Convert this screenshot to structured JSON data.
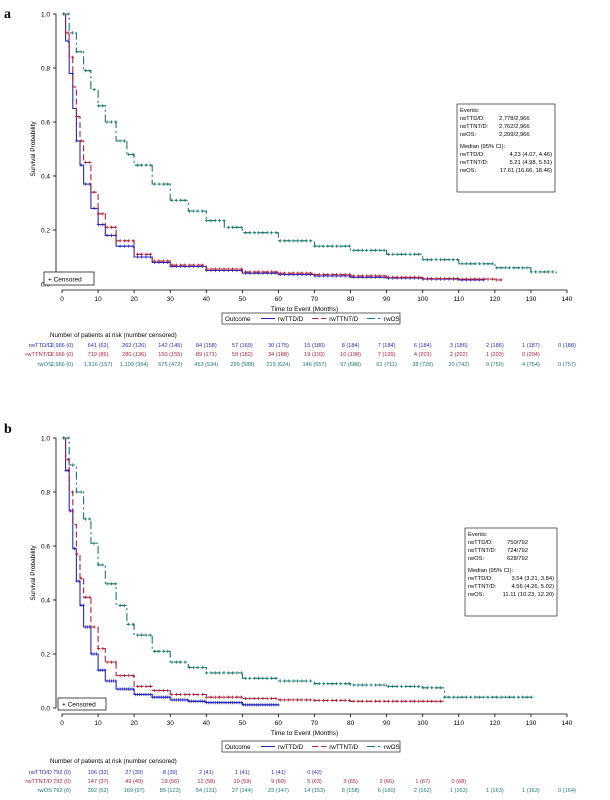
{
  "chart_data": [
    {
      "panel": "a",
      "type": "line",
      "xlabel": "Time to Event (Months)",
      "ylabel": "Survival Probability",
      "xlim": [
        0,
        140
      ],
      "ylim": [
        0,
        1.0
      ],
      "x_ticks": [
        0,
        10,
        20,
        30,
        40,
        50,
        60,
        70,
        80,
        90,
        100,
        110,
        120,
        130,
        140
      ],
      "y_ticks": [
        "0.0",
        "0.2",
        "0.4",
        "0.6",
        "0.8",
        "1.0"
      ],
      "censor_legend": "Censored",
      "legend_title": "Outcome",
      "stats": {
        "events_title": "Events:",
        "events": [
          {
            "label": "rwTTD/D:",
            "value": "2,778/2,966"
          },
          {
            "label": "rwTTNT/D:",
            "value": "2,762/2,966"
          },
          {
            "label": "rwOS:",
            "value": "2,209/2,966"
          }
        ],
        "median_title": "Median (95% CI):",
        "median": [
          {
            "label": "rwTTD/D:",
            "value": "4.23 (4.07, 4.46)"
          },
          {
            "label": "rwTTNT/D:",
            "value": "5.21 (4.98, 5.51)"
          },
          {
            "label": "rwOS:",
            "value": "17.61 (16.66, 18.46)"
          }
        ]
      },
      "series": [
        {
          "name": "rwTTD/D",
          "color": "#2929c4",
          "dash": "solid",
          "x": [
            0,
            1,
            2,
            3,
            4,
            5,
            6,
            8,
            10,
            12,
            15,
            20,
            25,
            30,
            40,
            50,
            60,
            70,
            80,
            90,
            100,
            110,
            117
          ],
          "y": [
            1.0,
            0.9,
            0.78,
            0.65,
            0.53,
            0.44,
            0.37,
            0.28,
            0.22,
            0.18,
            0.14,
            0.1,
            0.08,
            0.065,
            0.05,
            0.04,
            0.035,
            0.03,
            0.025,
            0.022,
            0.018,
            0.015,
            0.015
          ]
        },
        {
          "name": "rwTTNT/D",
          "color": "#b0203a",
          "dash": "dash",
          "x": [
            0,
            1,
            2,
            3,
            4,
            5,
            6,
            8,
            10,
            12,
            15,
            20,
            25,
            30,
            40,
            50,
            60,
            70,
            80,
            90,
            100,
            110,
            120,
            122
          ],
          "y": [
            1.0,
            0.93,
            0.84,
            0.73,
            0.62,
            0.53,
            0.45,
            0.34,
            0.26,
            0.21,
            0.16,
            0.11,
            0.085,
            0.07,
            0.055,
            0.045,
            0.04,
            0.035,
            0.03,
            0.025,
            0.02,
            0.018,
            0.015,
            0.015
          ]
        },
        {
          "name": "rwOS",
          "color": "#1b7a6e",
          "dash": "dashdot",
          "x": [
            0,
            2,
            4,
            6,
            8,
            10,
            12,
            15,
            18,
            20,
            25,
            30,
            35,
            40,
            45,
            50,
            60,
            70,
            80,
            90,
            100,
            110,
            120,
            130,
            137
          ],
          "y": [
            1.0,
            0.93,
            0.86,
            0.79,
            0.72,
            0.66,
            0.6,
            0.53,
            0.48,
            0.44,
            0.37,
            0.31,
            0.27,
            0.235,
            0.21,
            0.19,
            0.16,
            0.14,
            0.125,
            0.11,
            0.09,
            0.075,
            0.06,
            0.045,
            0.04
          ]
        }
      ],
      "risk_table": {
        "title": "Number of patients at risk (number censored)",
        "rows": [
          {
            "name": "rwTTD/D",
            "values": [
              "2,966 (0)",
              "641 (62)",
              "262 (126)",
              "142 (145)",
              "84 (158)",
              "57 (169)",
              "30 (175)",
              "15 (180)",
              "8 (184)",
              "7 (184)",
              "6 (184)",
              "3 (186)",
              "2 (186)",
              "1 (187)",
              "0 (188)"
            ]
          },
          {
            "name": "rwTTNT/D",
            "values": [
              "2,966 (0)",
              "719 (86)",
              "280 (136)",
              "150 (155)",
              "89 (171)",
              "59 (182)",
              "34 (188)",
              "19 (193)",
              "10 (198)",
              "7 (199)",
              "4 (201)",
              "2 (202)",
              "1 (203)",
              "0 (204)"
            ]
          },
          {
            "name": "rwOS",
            "values": [
              "2,966 (0)",
              "1,916 (157)",
              "1,109 (364)",
              "675 (472)",
              "453 (534)",
              "299 (588)",
              "219 (624)",
              "146 (657)",
              "97 (688)",
              "61 (711)",
              "38 (728)",
              "20 (742)",
              "9 (750)",
              "4 (754)",
              "0 (757)"
            ]
          }
        ]
      }
    },
    {
      "panel": "b",
      "type": "line",
      "xlabel": "Time to Event (Months)",
      "ylabel": "Survival Probability",
      "xlim": [
        0,
        140
      ],
      "ylim": [
        0,
        1.0
      ],
      "x_ticks": [
        0,
        10,
        20,
        30,
        40,
        50,
        60,
        70,
        80,
        90,
        100,
        110,
        120,
        130,
        140
      ],
      "y_ticks": [
        "0.0",
        "0.2",
        "0.4",
        "0.6",
        "0.8",
        "1.0"
      ],
      "censor_legend": "Censored",
      "legend_title": "Outcome",
      "stats": {
        "events_title": "Events:",
        "events": [
          {
            "label": "rwTTD/D:",
            "value": "750/792"
          },
          {
            "label": "rwTTNT/D:",
            "value": "724/792"
          },
          {
            "label": "rwOS:",
            "value": "628/792"
          }
        ],
        "median_title": "Median (95% CI):",
        "median": [
          {
            "label": "rwTTD/D:",
            "value": "3.54 (3.21, 3.84)"
          },
          {
            "label": "rwTTNT/D:",
            "value": "4.56 (4.26, 5.02)"
          },
          {
            "label": "rwOS:",
            "value": "11.11 (10.23, 12.20)"
          }
        ]
      },
      "series": [
        {
          "name": "rwTTD/D",
          "color": "#2929c4",
          "dash": "solid",
          "x": [
            0,
            1,
            2,
            3,
            4,
            5,
            6,
            8,
            10,
            12,
            15,
            20,
            25,
            30,
            35,
            40,
            50,
            60
          ],
          "y": [
            1.0,
            0.88,
            0.73,
            0.59,
            0.47,
            0.38,
            0.3,
            0.2,
            0.14,
            0.1,
            0.07,
            0.05,
            0.04,
            0.03,
            0.025,
            0.02,
            0.012,
            0.01
          ]
        },
        {
          "name": "rwTTNT/D",
          "color": "#b0203a",
          "dash": "dash",
          "x": [
            0,
            1,
            2,
            3,
            4,
            5,
            6,
            8,
            10,
            12,
            15,
            20,
            25,
            30,
            40,
            50,
            60,
            70,
            80,
            90,
            100,
            106
          ],
          "y": [
            1.0,
            0.92,
            0.8,
            0.68,
            0.57,
            0.48,
            0.41,
            0.3,
            0.22,
            0.17,
            0.12,
            0.08,
            0.065,
            0.05,
            0.04,
            0.035,
            0.03,
            0.028,
            0.025,
            0.025,
            0.025,
            0.025
          ]
        },
        {
          "name": "rwOS",
          "color": "#1b7a6e",
          "dash": "dashdot",
          "x": [
            0,
            2,
            4,
            6,
            8,
            10,
            12,
            15,
            18,
            20,
            25,
            30,
            35,
            40,
            50,
            60,
            70,
            80,
            90,
            100,
            106,
            110,
            120,
            131
          ],
          "y": [
            1.0,
            0.9,
            0.8,
            0.7,
            0.61,
            0.53,
            0.46,
            0.38,
            0.31,
            0.27,
            0.21,
            0.17,
            0.15,
            0.13,
            0.11,
            0.1,
            0.09,
            0.085,
            0.08,
            0.075,
            0.04,
            0.04,
            0.04,
            0.04
          ]
        }
      ],
      "risk_table": {
        "title": "Number of patients at risk (number censored)",
        "rows": [
          {
            "name": "rwTTD/D",
            "values": [
              "792 (0)",
              "106 (32)",
              "27 (39)",
              "8 (39)",
              "2 (41)",
              "1 (41)",
              "1 (41)",
              "0 (42)"
            ]
          },
          {
            "name": "rwTTNT/D",
            "values": [
              "792 (0)",
              "147 (37)",
              "49 (49)",
              "19 (56)",
              "12 (58)",
              "10 (59)",
              "9 (60)",
              "5 (63)",
              "3 (65)",
              "2 (66)",
              "1 (67)",
              "0 (68)"
            ]
          },
          {
            "name": "rwOS",
            "values": [
              "792 (0)",
              "392 (52)",
              "169 (97)",
              "85 (123)",
              "54 (131)",
              "27 (144)",
              "23 (147)",
              "14 (153)",
              "8 (158)",
              "6 (160)",
              "2 (162)",
              "1 (163)",
              "1 (163)",
              "1 (163)",
              "0 (164)"
            ]
          }
        ]
      }
    }
  ]
}
